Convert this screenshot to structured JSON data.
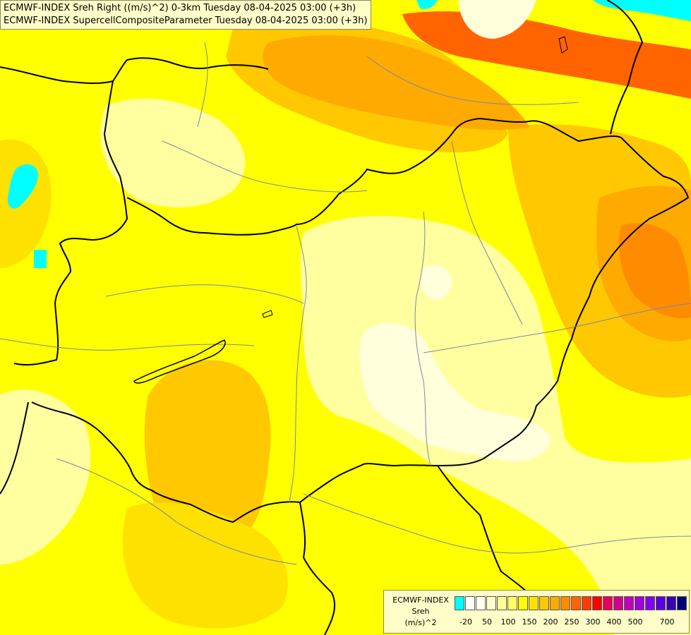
{
  "title": {
    "line1": "ECMWF-INDEX Sreh Right ((m/s)^2) 0-3km Tuesday 08-04-2025 03:00 (+3h)",
    "line2": "ECMWF-INDEX SupercellCompositeParameter Tuesday 08-04-2025 03:00 (+3h)"
  },
  "legend": {
    "source": "ECMWF-INDEX",
    "variable": "Sreh",
    "unit": "(m/s)^2",
    "colors": [
      "#00ffff",
      "#ffffff",
      "#fffff0",
      "#ffffc8",
      "#ffff96",
      "#ffff64",
      "#ffff00",
      "#ffe100",
      "#ffc800",
      "#ffaa00",
      "#ff8c00",
      "#ff6400",
      "#ff3c00",
      "#ff0000",
      "#e6005a",
      "#d2008c",
      "#be00be",
      "#a000dc",
      "#8200f0",
      "#5a00dc",
      "#3c00b4",
      "#000078"
    ],
    "ticks": [
      "-20",
      "50",
      "100",
      "150",
      "200",
      "250",
      "300",
      "400",
      "500",
      "700"
    ]
  },
  "field_colors": {
    "base": "#ffff00",
    "light": "#ffffa0",
    "pale": "#ffffdc",
    "yellow_orange": "#ffe100",
    "orange_light": "#ffc800",
    "orange": "#ffaa00",
    "red_orange": "#ff6400",
    "cyan": "#00ffff"
  }
}
